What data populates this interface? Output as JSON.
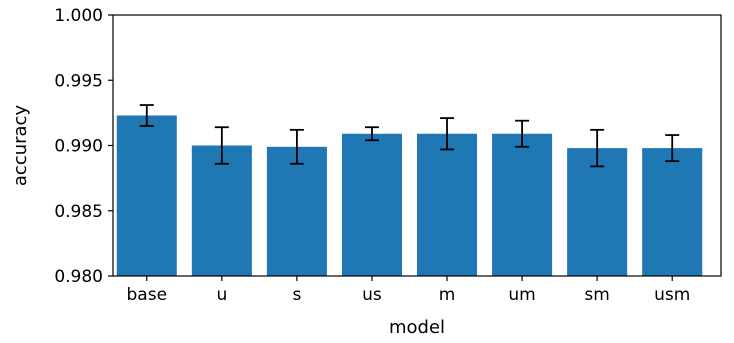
{
  "chart_data": {
    "type": "bar",
    "categories": [
      "base",
      "u",
      "s",
      "us",
      "m",
      "um",
      "sm",
      "usm"
    ],
    "values": [
      0.9923,
      0.99,
      0.9899,
      0.9909,
      0.9909,
      0.9909,
      0.9898,
      0.9898
    ],
    "error": [
      0.0008,
      0.0014,
      0.0013,
      0.0005,
      0.0012,
      0.001,
      0.0014,
      0.001
    ],
    "title": "",
    "xlabel": "model",
    "ylabel": "accuracy",
    "ylim": [
      0.98,
      1.0
    ],
    "yticks": [
      "0.980",
      "0.985",
      "0.990",
      "0.995",
      "1.000"
    ],
    "grid": false,
    "colors": {
      "bar": "#1f77b4",
      "error_bar": "#000000",
      "axis": "#000000"
    }
  }
}
